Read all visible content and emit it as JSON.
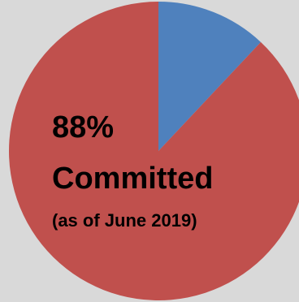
{
  "colors": {
    "background": "#d9d9d9",
    "slice_remaining": "#4f81bd",
    "slice_committed": "#c0504d",
    "label": "#000000"
  },
  "labels": {
    "percent": "88%",
    "status": "Committed",
    "as_of": "(as of June 2019)"
  },
  "chart_data": {
    "type": "pie",
    "categories": [
      "",
      "Committed"
    ],
    "values": [
      12,
      88
    ],
    "units": "percent",
    "start_angle_deg": 0,
    "direction": "clockwise",
    "legend": "none",
    "annotations": [
      "88%",
      "Committed",
      "(as of June 2019)"
    ]
  }
}
